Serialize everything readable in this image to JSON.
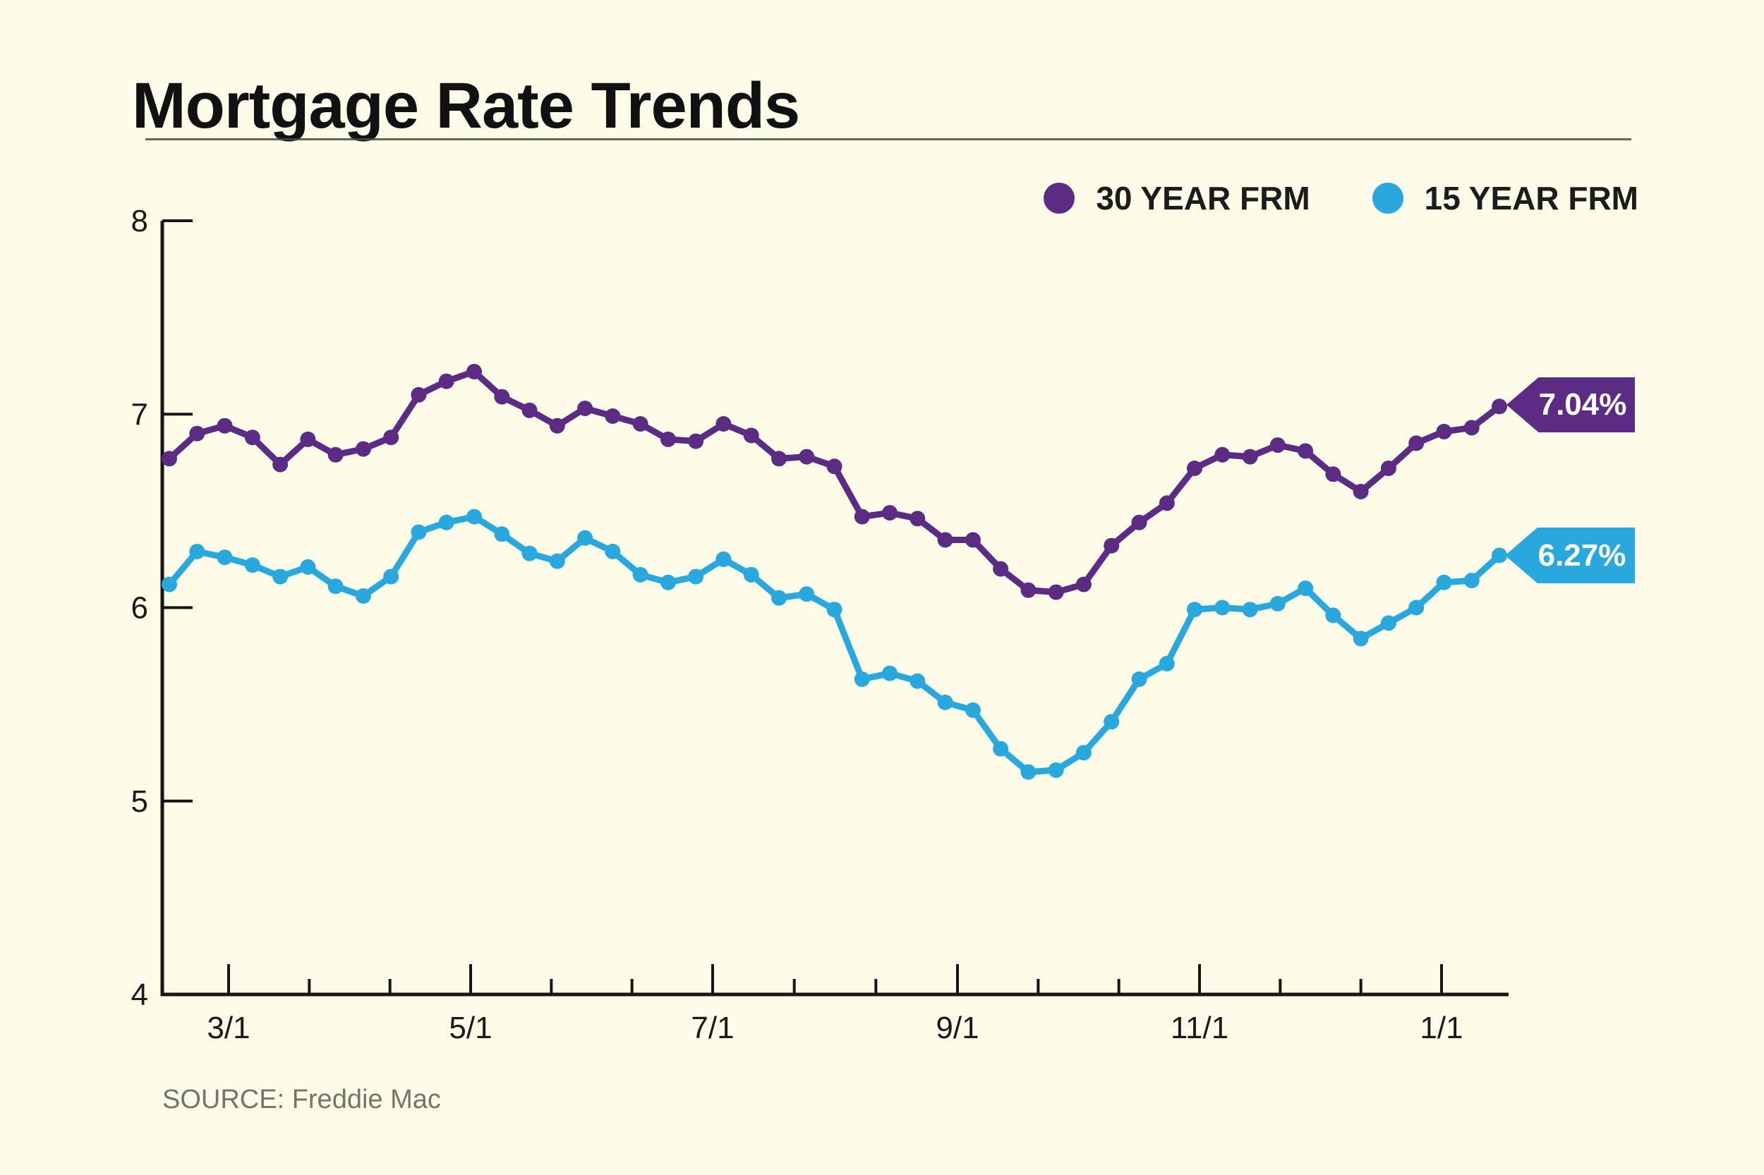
{
  "page": {
    "background": "#fbfbe8"
  },
  "header": {
    "title": "Mortgage Rate Trends"
  },
  "legend": [
    {
      "label": "30 YEAR FRM",
      "color": "#5c2c85"
    },
    {
      "label": "15 YEAR FRM",
      "color": "#29a8dd"
    }
  ],
  "end_labels": [
    {
      "value": "7.04%",
      "color": "#5c2c85"
    },
    {
      "value": "6.27%",
      "color": "#29a8dd"
    }
  ],
  "source": {
    "label": "SOURCE: Freddie Mac"
  },
  "chart_data": {
    "type": "line",
    "title": "Mortgage Rate Trends",
    "xlabel": "",
    "ylabel": "",
    "ylim": [
      4,
      8
    ],
    "yticks": [
      4,
      5,
      6,
      7,
      8
    ],
    "grid": false,
    "legend_position": "top-right",
    "xticks_major": [
      "3/1",
      "5/1",
      "7/1",
      "9/1",
      "11/1",
      "1/1"
    ],
    "x": [
      "2/15",
      "2/22",
      "2/29",
      "3/7",
      "3/14",
      "3/21",
      "3/28",
      "4/4",
      "4/11",
      "4/18",
      "4/25",
      "5/2",
      "5/9",
      "5/16",
      "5/23",
      "5/30",
      "6/6",
      "6/13",
      "6/20",
      "6/27",
      "7/3",
      "7/11",
      "7/18",
      "7/25",
      "8/1",
      "8/8",
      "8/15",
      "8/22",
      "8/29",
      "9/5",
      "9/12",
      "9/19",
      "9/26",
      "10/3",
      "10/10",
      "10/17",
      "10/24",
      "10/31",
      "11/7",
      "11/14",
      "11/21",
      "11/27",
      "12/5",
      "12/12",
      "12/19",
      "12/26",
      "1/2",
      "1/9",
      "1/16"
    ],
    "series": [
      {
        "name": "30 YEAR FRM",
        "color": "#5c2c85",
        "final_label": "7.04%",
        "values": [
          6.77,
          6.9,
          6.94,
          6.88,
          6.74,
          6.87,
          6.79,
          6.82,
          6.88,
          7.1,
          7.17,
          7.22,
          7.09,
          7.02,
          6.94,
          7.03,
          6.99,
          6.95,
          6.87,
          6.86,
          6.95,
          6.89,
          6.77,
          6.78,
          6.73,
          6.47,
          6.49,
          6.46,
          6.35,
          6.35,
          6.2,
          6.09,
          6.08,
          6.12,
          6.32,
          6.44,
          6.54,
          6.72,
          6.79,
          6.78,
          6.84,
          6.81,
          6.69,
          6.6,
          6.72,
          6.85,
          6.91,
          6.93,
          7.04
        ]
      },
      {
        "name": "15 YEAR FRM",
        "color": "#29a8dd",
        "final_label": "6.27%",
        "values": [
          6.12,
          6.29,
          6.26,
          6.22,
          6.16,
          6.21,
          6.11,
          6.06,
          6.16,
          6.39,
          6.44,
          6.47,
          6.38,
          6.28,
          6.24,
          6.36,
          6.29,
          6.17,
          6.13,
          6.16,
          6.25,
          6.17,
          6.05,
          6.07,
          5.99,
          5.63,
          5.66,
          5.62,
          5.51,
          5.47,
          5.27,
          5.15,
          5.16,
          5.25,
          5.41,
          5.63,
          5.71,
          5.99,
          6.0,
          5.99,
          6.02,
          6.1,
          5.96,
          5.84,
          5.92,
          6.0,
          6.13,
          6.14,
          6.27
        ]
      }
    ]
  }
}
